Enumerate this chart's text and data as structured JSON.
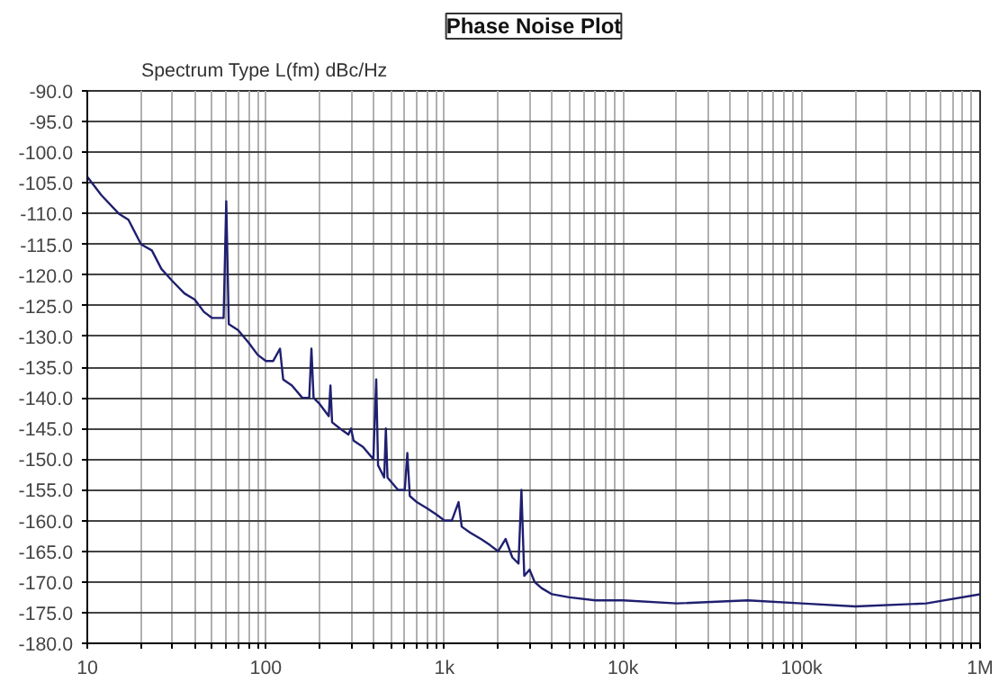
{
  "chart_data": {
    "type": "line",
    "title": "Phase Noise Plot",
    "subtitle": "Spectrum Type  L(fm) dBc/Hz",
    "log": "x",
    "grid": true,
    "line_style": "solid",
    "xlim": [
      10,
      1000000
    ],
    "ylim": [
      -180,
      -90
    ],
    "xticks": [
      {
        "value": 10,
        "label": "10"
      },
      {
        "value": 20,
        "label": null
      },
      {
        "value": 30,
        "label": null
      },
      {
        "value": 40,
        "label": null
      },
      {
        "value": 50,
        "label": null
      },
      {
        "value": 60,
        "label": null
      },
      {
        "value": 70,
        "label": null
      },
      {
        "value": 80,
        "label": null
      },
      {
        "value": 90,
        "label": null
      },
      {
        "value": 100,
        "label": "100"
      },
      {
        "value": 200,
        "label": null
      },
      {
        "value": 300,
        "label": null
      },
      {
        "value": 400,
        "label": null
      },
      {
        "value": 500,
        "label": null
      },
      {
        "value": 600,
        "label": null
      },
      {
        "value": 700,
        "label": null
      },
      {
        "value": 800,
        "label": null
      },
      {
        "value": 900,
        "label": null
      },
      {
        "value": 1000,
        "label": "1k"
      },
      {
        "value": 2000,
        "label": null
      },
      {
        "value": 3000,
        "label": null
      },
      {
        "value": 4000,
        "label": null
      },
      {
        "value": 5000,
        "label": null
      },
      {
        "value": 6000,
        "label": null
      },
      {
        "value": 7000,
        "label": null
      },
      {
        "value": 8000,
        "label": null
      },
      {
        "value": 9000,
        "label": null
      },
      {
        "value": 10000,
        "label": "10k"
      },
      {
        "value": 20000,
        "label": null
      },
      {
        "value": 30000,
        "label": null
      },
      {
        "value": 40000,
        "label": null
      },
      {
        "value": 50000,
        "label": null
      },
      {
        "value": 60000,
        "label": null
      },
      {
        "value": 70000,
        "label": null
      },
      {
        "value": 80000,
        "label": null
      },
      {
        "value": 90000,
        "label": null
      },
      {
        "value": 100000,
        "label": "100k"
      },
      {
        "value": 200000,
        "label": null
      },
      {
        "value": 300000,
        "label": null
      },
      {
        "value": 400000,
        "label": null
      },
      {
        "value": 500000,
        "label": null
      },
      {
        "value": 600000,
        "label": null
      },
      {
        "value": 700000,
        "label": null
      },
      {
        "value": 800000,
        "label": null
      },
      {
        "value": 900000,
        "label": null
      },
      {
        "value": 1000000,
        "label": "1M"
      }
    ],
    "yticks": [
      {
        "value": -90,
        "label": "-90.0"
      },
      {
        "value": -95,
        "label": "-95.0"
      },
      {
        "value": -100,
        "label": "-100.0"
      },
      {
        "value": -105,
        "label": "-105.0"
      },
      {
        "value": -110,
        "label": "-110.0"
      },
      {
        "value": -115,
        "label": "-115.0"
      },
      {
        "value": -120,
        "label": "-120.0"
      },
      {
        "value": -125,
        "label": "-125.0"
      },
      {
        "value": -130,
        "label": "-130.0"
      },
      {
        "value": -135,
        "label": "-135.0"
      },
      {
        "value": -140,
        "label": "-140.0"
      },
      {
        "value": -145,
        "label": "-145.0"
      },
      {
        "value": -150,
        "label": "-150.0"
      },
      {
        "value": -155,
        "label": "-155.0"
      },
      {
        "value": -160,
        "label": "-160.0"
      },
      {
        "value": -165,
        "label": "-165.0"
      },
      {
        "value": -170,
        "label": "-170.0"
      },
      {
        "value": -175,
        "label": "-175.0"
      },
      {
        "value": -180,
        "label": "-180.0"
      }
    ],
    "series": [
      {
        "color": "#1f1f70",
        "x": [
          10,
          12,
          15,
          17,
          20,
          23,
          26,
          30,
          35,
          40,
          45,
          50,
          55,
          58,
          60,
          62,
          70,
          80,
          90,
          100,
          110,
          120,
          125,
          140,
          160,
          175,
          180,
          185,
          200,
          225,
          230,
          235,
          260,
          290,
          300,
          310,
          350,
          400,
          415,
          425,
          460,
          470,
          480,
          550,
          600,
          620,
          640,
          700,
          800,
          900,
          1000,
          1100,
          1200,
          1250,
          1400,
          1600,
          1800,
          2000,
          2200,
          2400,
          2600,
          2700,
          2800,
          3000,
          3200,
          3500,
          4000,
          5000,
          7000,
          10000,
          20000,
          50000,
          100000,
          200000,
          500000,
          1000000
        ],
        "values": [
          -104,
          -107,
          -110,
          -111,
          -115,
          -116,
          -119,
          -121,
          -123,
          -124,
          -126,
          -127,
          -127,
          -127,
          -108,
          -128,
          -129,
          -131,
          -133,
          -134,
          -134,
          -132,
          -137,
          -138,
          -140,
          -140,
          -132,
          -140,
          -141,
          -143,
          -138,
          -144,
          -145,
          -146,
          -145,
          -147,
          -148,
          -150,
          -137,
          -151,
          -153,
          -145,
          -153,
          -155,
          -155,
          -149,
          -156,
          -157,
          -158,
          -159,
          -160,
          -160,
          -157,
          -161,
          -162,
          -163,
          -164,
          -165,
          -163,
          -166,
          -167,
          -155,
          -169,
          -168,
          -170,
          -171,
          -172,
          -172.5,
          -173,
          -173,
          -173.5,
          -173,
          -173.5,
          -174,
          -173.5,
          -172
        ]
      }
    ]
  }
}
